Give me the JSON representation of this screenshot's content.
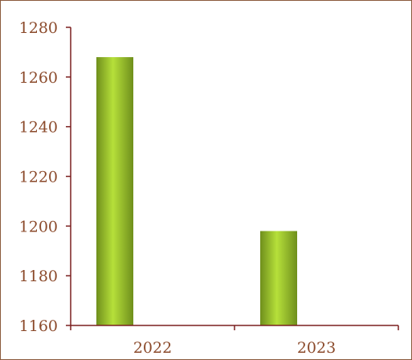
{
  "chart_data": {
    "type": "bar",
    "title": "",
    "xlabel": "",
    "ylabel": "",
    "categories": [
      "2022",
      "2023"
    ],
    "values": [
      1268,
      1198
    ],
    "ylim": [
      1160,
      1280
    ],
    "yticks": [
      1160,
      1180,
      1200,
      1220,
      1240,
      1260,
      1280
    ],
    "grid": false,
    "legend": "none",
    "colors": {
      "bar_dark": "#6f8f1c",
      "bar_light": "#b6e03a",
      "axis": "#7a1f1f",
      "label": "#8b4a2b",
      "frame": "#8b5a3c"
    }
  }
}
